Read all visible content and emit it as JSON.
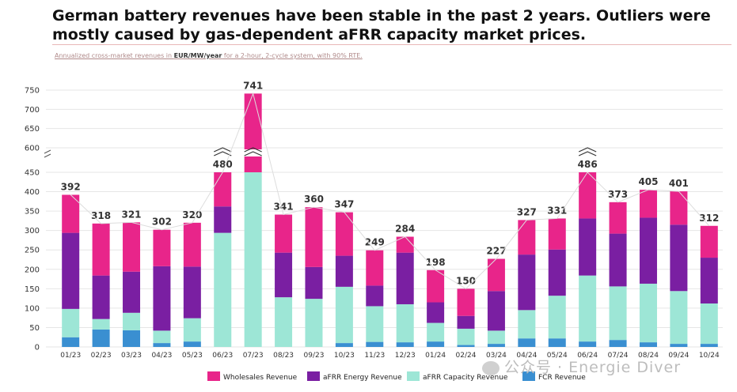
{
  "title": "German battery revenues have been stable in the past 2 years. Outliers were mostly caused by gas-dependent aFRR capacity market prices.",
  "subtitle": {
    "prefix": "Annualized cross-market revenues in ",
    "unit": "EUR/MW/year",
    "suffix": " for a 2-hour, 2-cycle system, with 90% RTE."
  },
  "watermark": "公众号 · Energie Diver",
  "chart_data": {
    "type": "bar",
    "stacked": true,
    "broken_y_axis": true,
    "categories": [
      "01/23",
      "02/23",
      "03/23",
      "04/23",
      "05/23",
      "06/23",
      "07/23",
      "08/23",
      "09/23",
      "10/23",
      "11/23",
      "12/23",
      "01/24",
      "02/24",
      "03/24",
      "04/24",
      "05/24",
      "06/24",
      "07/24",
      "08/24",
      "09/24",
      "10/24"
    ],
    "totals": [
      392,
      318,
      321,
      302,
      320,
      480,
      741,
      341,
      360,
      347,
      249,
      284,
      198,
      150,
      227,
      327,
      331,
      486,
      373,
      405,
      401,
      312
    ],
    "series": [
      {
        "name": "FCR Revenue",
        "color": "#3a8fd1",
        "values": [
          25,
          45,
          43,
          10,
          14,
          0,
          0,
          0,
          0,
          10,
          13,
          12,
          14,
          5,
          8,
          22,
          22,
          14,
          18,
          12,
          8,
          8
        ]
      },
      {
        "name": "aFRR Capacity Revenue",
        "color": "#9de6d6",
        "values": [
          73,
          27,
          45,
          32,
          60,
          294,
          468,
          128,
          124,
          145,
          92,
          98,
          48,
          42,
          34,
          73,
          110,
          170,
          138,
          151,
          136,
          104
        ]
      },
      {
        "name": "aFRR Energy Revenue",
        "color": "#7a1fa2",
        "values": [
          196,
          112,
          106,
          166,
          133,
          68,
          20,
          115,
          82,
          80,
          53,
          133,
          53,
          33,
          102,
          143,
          119,
          147,
          136,
          170,
          171,
          118
        ]
      },
      {
        "name": "Wholesales Revenue",
        "color": "#e8258a",
        "values": [
          98,
          134,
          127,
          94,
          113,
          118,
          253,
          98,
          154,
          112,
          91,
          41,
          83,
          70,
          83,
          89,
          80,
          155,
          81,
          72,
          86,
          82
        ]
      }
    ],
    "legend_order": [
      "Wholesales Revenue",
      "aFRR Energy Revenue",
      "aFRR Capacity Revenue",
      "FCR Revenue"
    ],
    "legend_position": "bottom",
    "y_ticks_lower": [
      0,
      50,
      100,
      150,
      200,
      250,
      300,
      350,
      400,
      450
    ],
    "y_ticks_upper": [
      600,
      650,
      700,
      750
    ],
    "grid": true
  }
}
